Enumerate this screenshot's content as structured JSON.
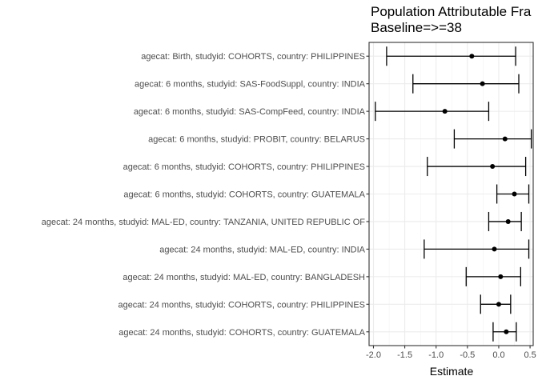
{
  "chart_data": {
    "type": "forest",
    "title": "Population Attributable Fra",
    "subtitle": "Baseline=>=38",
    "xlabel": "Estimate",
    "ylabel": "",
    "xlim": [
      -2.07,
      0.55
    ],
    "xticks": [
      -2.0,
      -1.5,
      -1.0,
      -0.5,
      0.0,
      0.5
    ],
    "xtick_labels": [
      "-2.0",
      "-1.5",
      "-1.0",
      "-0.5",
      "0.0",
      "0.5"
    ],
    "grid": true,
    "rows": [
      {
        "label": "agecat: Birth, studyid: COHORTS, country: PHILIPPINES",
        "estimate": -0.43,
        "lower": -1.79,
        "upper": 0.27
      },
      {
        "label": "agecat: 6 months, studyid: SAS-FoodSuppl, country: INDIA",
        "estimate": -0.26,
        "lower": -1.37,
        "upper": 0.32
      },
      {
        "label": "agecat: 6 months, studyid: SAS-CompFeed, country: INDIA",
        "estimate": -0.86,
        "lower": -1.97,
        "upper": -0.16
      },
      {
        "label": "agecat: 6 months, studyid: PROBIT, country: BELARUS",
        "estimate": 0.1,
        "lower": -0.71,
        "upper": 0.52
      },
      {
        "label": "agecat: 6 months, studyid: COHORTS, country: PHILIPPINES",
        "estimate": -0.1,
        "lower": -1.14,
        "upper": 0.43
      },
      {
        "label": "agecat: 6 months, studyid: COHORTS, country: GUATEMALA",
        "estimate": 0.25,
        "lower": -0.03,
        "upper": 0.48
      },
      {
        "label": "agecat: 24 months, studyid: MAL-ED, country: TANZANIA, UNITED REPUBLIC OF",
        "estimate": 0.15,
        "lower": -0.16,
        "upper": 0.36
      },
      {
        "label": "agecat: 24 months, studyid: MAL-ED, country: INDIA",
        "estimate": -0.07,
        "lower": -1.19,
        "upper": 0.48
      },
      {
        "label": "agecat: 24 months, studyid: MAL-ED, country: BANGLADESH",
        "estimate": 0.03,
        "lower": -0.52,
        "upper": 0.35
      },
      {
        "label": "agecat: 24 months, studyid: COHORTS, country: PHILIPPINES",
        "estimate": 0.0,
        "lower": -0.29,
        "upper": 0.19
      },
      {
        "label": "agecat: 24 months, studyid: COHORTS, country: GUATEMALA",
        "estimate": 0.12,
        "lower": -0.09,
        "upper": 0.28
      }
    ]
  }
}
